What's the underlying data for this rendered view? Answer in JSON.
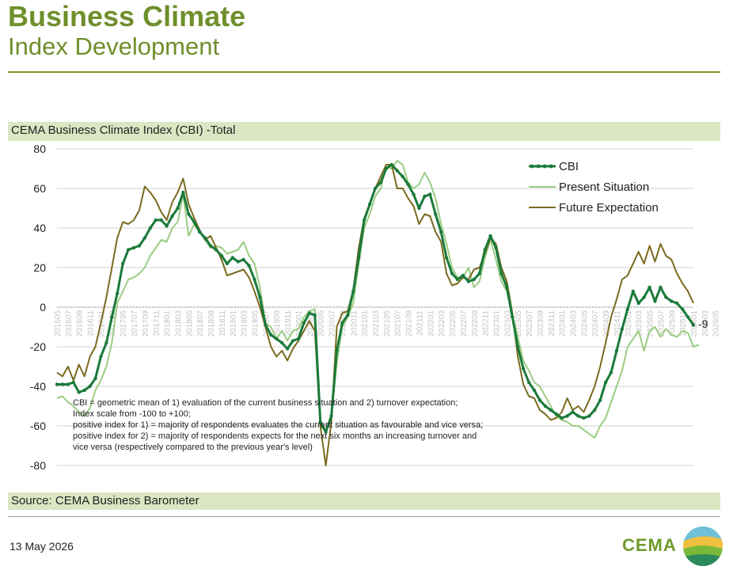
{
  "header": {
    "title": "Business Climate",
    "subtitle": "Index Development"
  },
  "chart_header": "CEMA Business Climate Index (CBI) -Total",
  "source": "Source: CEMA Business Barometer",
  "footer_date": "13 May 2026",
  "logo_text": "CEMA",
  "colors": {
    "accent": "#6f8f2b",
    "band": "#dbe6c2",
    "cbi": "#1a7a3a",
    "present": "#9ccc83",
    "future": "#7a6a1e"
  },
  "chart_data": {
    "type": "line",
    "y_ticks": [
      "80",
      "60",
      "40",
      "20",
      "0",
      "-20",
      "-40",
      "-60",
      "-80"
    ],
    "ylim": [
      -80,
      80
    ],
    "x_tick_labels": [
      "201605",
      "201607",
      "201609",
      "201611",
      "201701",
      "201703",
      "201705",
      "201707",
      "201709",
      "201711",
      "201801",
      "201803",
      "201805",
      "201807",
      "201809",
      "201811",
      "201901",
      "201903",
      "201905",
      "201907",
      "201909",
      "201911",
      "202001",
      "202003",
      "202005",
      "202007",
      "202009",
      "202011",
      "202101",
      "202103",
      "202105",
      "202107",
      "202109",
      "202111",
      "202201",
      "202203",
      "202205",
      "202207",
      "202209",
      "202211",
      "202301",
      "202303",
      "202305",
      "202307",
      "202309",
      "202311",
      "202401",
      "202403",
      "202405",
      "202407",
      "202409",
      "202411",
      "202501",
      "202503",
      "202505",
      "202507",
      "202509",
      "202511",
      "202601",
      "202603",
      "202605"
    ],
    "end_label": "-9",
    "note_lines": [
      "CBI = geometric mean of 1) evaluation of the current business situation and 2) turnover expectation;",
      "Index scale from -100 to +100;",
      "positive index for 1) = majority of respondents evaluates the current situation as favourable and vice versa;",
      "positive index for 2) = majority of respondents expects for the next six months an increasing turnover and",
      "vice versa (respectively compared to the previous year's level)"
    ],
    "series": [
      {
        "name": "CBI",
        "values": [
          -39,
          -39,
          -39,
          -38,
          -43,
          -42,
          -40,
          -36,
          -25,
          -18,
          -5,
          7,
          22,
          29,
          30,
          31,
          35,
          40,
          44,
          44,
          41,
          46,
          50,
          58,
          47,
          43,
          38,
          35,
          31,
          29,
          26,
          22,
          25,
          23,
          24,
          21,
          14,
          5,
          -9,
          -14,
          -16,
          -18,
          -21,
          -17,
          -16,
          -8,
          -3,
          -4,
          -58,
          -63,
          -55,
          -22,
          -8,
          -4,
          8,
          25,
          44,
          52,
          60,
          63,
          70,
          72,
          69,
          66,
          62,
          57,
          50,
          56,
          57,
          47,
          38,
          25,
          17,
          14,
          16,
          13,
          14,
          17,
          29,
          36,
          30,
          17,
          10,
          -5,
          -20,
          -31,
          -38,
          -42,
          -47,
          -50,
          -52,
          -54,
          -56,
          -55,
          -53,
          -55,
          -56,
          -55,
          -52,
          -47,
          -38,
          -33,
          -22,
          -11,
          -1,
          8,
          2,
          5,
          10,
          3,
          10,
          5,
          3,
          2,
          -1,
          -5,
          -9
        ],
        "markers": true
      },
      {
        "name": "Present Situation",
        "values": [
          -46,
          -45,
          -48,
          -50,
          -53,
          -55,
          -51,
          -42,
          -37,
          -30,
          -18,
          2,
          8,
          14,
          15,
          17,
          20,
          26,
          30,
          34,
          33,
          40,
          43,
          57,
          36,
          42,
          38,
          34,
          30,
          31,
          30,
          27,
          28,
          29,
          33,
          26,
          22,
          10,
          -8,
          -10,
          -16,
          -12,
          -17,
          -12,
          -11,
          -5,
          -2,
          -1,
          -60,
          -63,
          -55,
          -28,
          -10,
          -5,
          2,
          22,
          40,
          47,
          56,
          60,
          71,
          70,
          74,
          72,
          63,
          60,
          62,
          68,
          63,
          55,
          42,
          32,
          20,
          15,
          15,
          20,
          10,
          13,
          25,
          34,
          24,
          13,
          8,
          -4,
          -15,
          -27,
          -32,
          -38,
          -40,
          -45,
          -50,
          -55,
          -57,
          -58,
          -60,
          -60,
          -62,
          -64,
          -66,
          -60,
          -56,
          -48,
          -40,
          -32,
          -20,
          -16,
          -12,
          -22,
          -12,
          -10,
          -15,
          -11,
          -14,
          -15,
          -12,
          -13,
          -20,
          -19
        ],
        "markers": false
      },
      {
        "name": "Future Expectation",
        "values": [
          -33,
          -35,
          -30,
          -37,
          -29,
          -35,
          -25,
          -20,
          -8,
          5,
          20,
          35,
          43,
          42,
          44,
          49,
          61,
          58,
          54,
          48,
          44,
          53,
          58,
          65,
          52,
          45,
          39,
          34,
          36,
          30,
          24,
          16,
          17,
          18,
          19,
          15,
          8,
          0,
          -10,
          -20,
          -25,
          -22,
          -27,
          -21,
          -17,
          -12,
          -7,
          -12,
          -60,
          -80,
          -58,
          -10,
          -3,
          -2,
          9,
          30,
          45,
          52,
          60,
          66,
          72,
          72,
          60,
          60,
          55,
          51,
          42,
          47,
          46,
          38,
          33,
          17,
          11,
          12,
          15,
          14,
          19,
          20,
          27,
          35,
          32,
          20,
          13,
          -3,
          -25,
          -39,
          -45,
          -46,
          -52,
          -54,
          -57,
          -56,
          -53,
          -46,
          -52,
          -50,
          -53,
          -47,
          -40,
          -30,
          -18,
          -5,
          4,
          14,
          16,
          22,
          28,
          22,
          31,
          23,
          32,
          26,
          24,
          17,
          12,
          8,
          2
        ]
      }
    ]
  }
}
